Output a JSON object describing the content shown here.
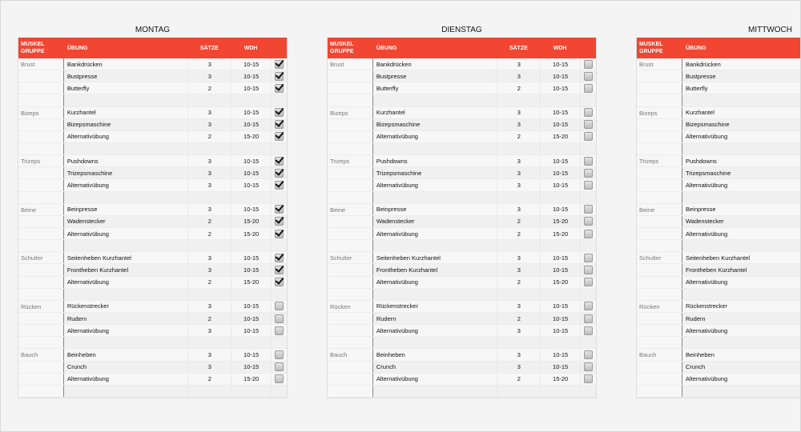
{
  "accent_color": "#f04632",
  "headers": {
    "group": "MUSKEL GRUPPE",
    "exercise": "ÜBUNG",
    "sets": "SÄTZE",
    "reps": "WDH"
  },
  "groups": [
    {
      "name": "Brust",
      "exercises": [
        [
          "Bankdrücken",
          "3",
          "10-15"
        ],
        [
          "Bustpresse",
          "3",
          "10-15"
        ],
        [
          "Butterfly",
          "2",
          "10-15"
        ]
      ]
    },
    {
      "name": "Bizeps",
      "exercises": [
        [
          "Kurzhantel",
          "3",
          "10-15"
        ],
        [
          "Bizepsmaschine",
          "3",
          "10-15"
        ],
        [
          "Alternativübung",
          "2",
          "15-20"
        ]
      ]
    },
    {
      "name": "Trizeps",
      "exercises": [
        [
          "Pushdowns",
          "3",
          "10-15"
        ],
        [
          "Trizepsmaschine",
          "3",
          "10-15"
        ],
        [
          "Alternativübung",
          "3",
          "10-15"
        ]
      ]
    },
    {
      "name": "Beine",
      "exercises": [
        [
          "Beinpresse",
          "3",
          "10-15"
        ],
        [
          "Wadenstecker",
          "2",
          "15-20"
        ],
        [
          "Alternativübung",
          "2",
          "15-20"
        ]
      ]
    },
    {
      "name": "Schulter",
      "exercises": [
        [
          "Seitenheben Kurzhantel",
          "3",
          "10-15"
        ],
        [
          "Frontheben Kurzhantel",
          "3",
          "10-15"
        ],
        [
          "Alternativübung",
          "2",
          "15-20"
        ]
      ]
    },
    {
      "name": "Rücken",
      "exercises": [
        [
          "Rückenstrecker",
          "3",
          "10-15"
        ],
        [
          "Rudern",
          "2",
          "10-15"
        ],
        [
          "Alternativübung",
          "3",
          "10-15"
        ]
      ]
    },
    {
      "name": "Bauch",
      "exercises": [
        [
          "Beinheben",
          "3",
          "10-15"
        ],
        [
          "Crunch",
          "3",
          "10-15"
        ],
        [
          "Alternativübung",
          "2",
          "15-20"
        ]
      ]
    }
  ],
  "days": [
    {
      "title": "MONTAG",
      "checked": [
        [
          true,
          true,
          true
        ],
        [
          true,
          true,
          true
        ],
        [
          true,
          true,
          true
        ],
        [
          true,
          true,
          true
        ],
        [
          true,
          true,
          true
        ],
        [
          false,
          false,
          false
        ],
        [
          false,
          false,
          false
        ]
      ]
    },
    {
      "title": "DIENSTAG",
      "checked": [
        [
          false,
          false,
          false
        ],
        [
          false,
          false,
          false
        ],
        [
          false,
          false,
          false
        ],
        [
          false,
          false,
          false
        ],
        [
          false,
          false,
          false
        ],
        [
          false,
          false,
          false
        ],
        [
          false,
          false,
          false
        ]
      ]
    },
    {
      "title": "MITTWOCH",
      "checked": [
        [
          false,
          false,
          false
        ],
        [
          false,
          false,
          false
        ],
        [
          false,
          false,
          false
        ],
        [
          false,
          false,
          false
        ],
        [
          false,
          false,
          false
        ],
        [
          false,
          false,
          false
        ],
        [
          false,
          false,
          false
        ]
      ]
    }
  ]
}
